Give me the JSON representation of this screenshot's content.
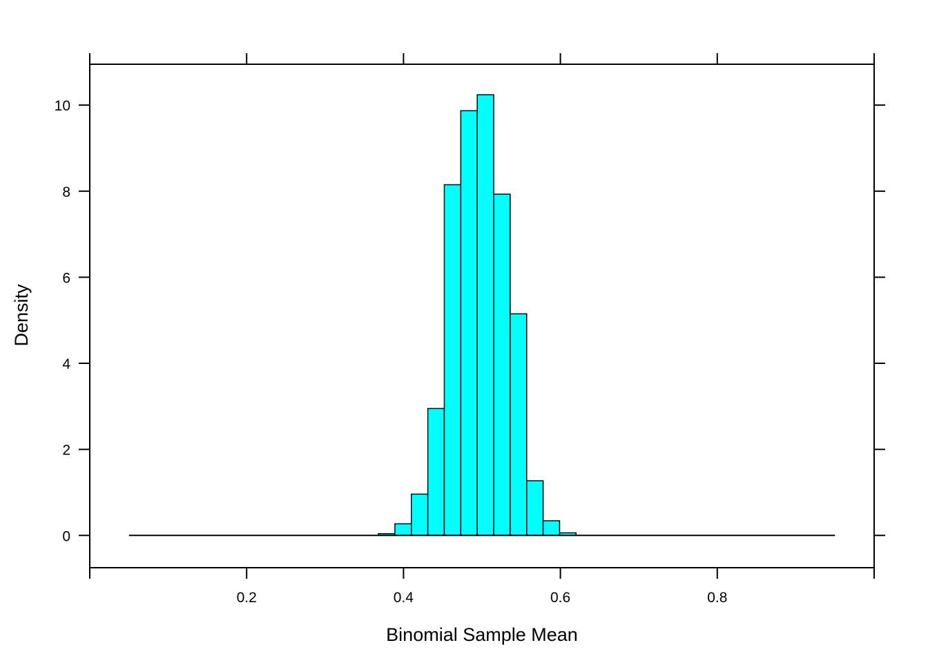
{
  "chart_data": {
    "type": "bar",
    "title": "",
    "xlabel": "Binomial Sample Mean",
    "ylabel": "Density",
    "xlim": [
      0.0,
      1.0
    ],
    "ylim": [
      -0.75,
      10.95
    ],
    "xticks": [
      0.2,
      0.4,
      0.6,
      0.8
    ],
    "xtick_labels": [
      "0.2",
      "0.4",
      "0.6",
      "0.8"
    ],
    "yticks": [
      0,
      2,
      4,
      6,
      8,
      10
    ],
    "ytick_labels": [
      "0",
      "2",
      "4",
      "6",
      "8",
      "10"
    ],
    "bin_width": 0.021,
    "baseline_range": [
      0.05,
      0.95
    ],
    "bar_color": "#00FFFF",
    "bars": [
      {
        "x0": 0.368,
        "value": 0.04
      },
      {
        "x0": 0.389,
        "value": 0.27
      },
      {
        "x0": 0.41,
        "value": 0.96
      },
      {
        "x0": 0.431,
        "value": 2.95
      },
      {
        "x0": 0.452,
        "value": 8.15
      },
      {
        "x0": 0.473,
        "value": 9.87
      },
      {
        "x0": 0.494,
        "value": 10.24
      },
      {
        "x0": 0.515,
        "value": 7.93
      },
      {
        "x0": 0.536,
        "value": 5.15
      },
      {
        "x0": 0.557,
        "value": 1.27
      },
      {
        "x0": 0.578,
        "value": 0.34
      },
      {
        "x0": 0.599,
        "value": 0.06
      }
    ]
  }
}
